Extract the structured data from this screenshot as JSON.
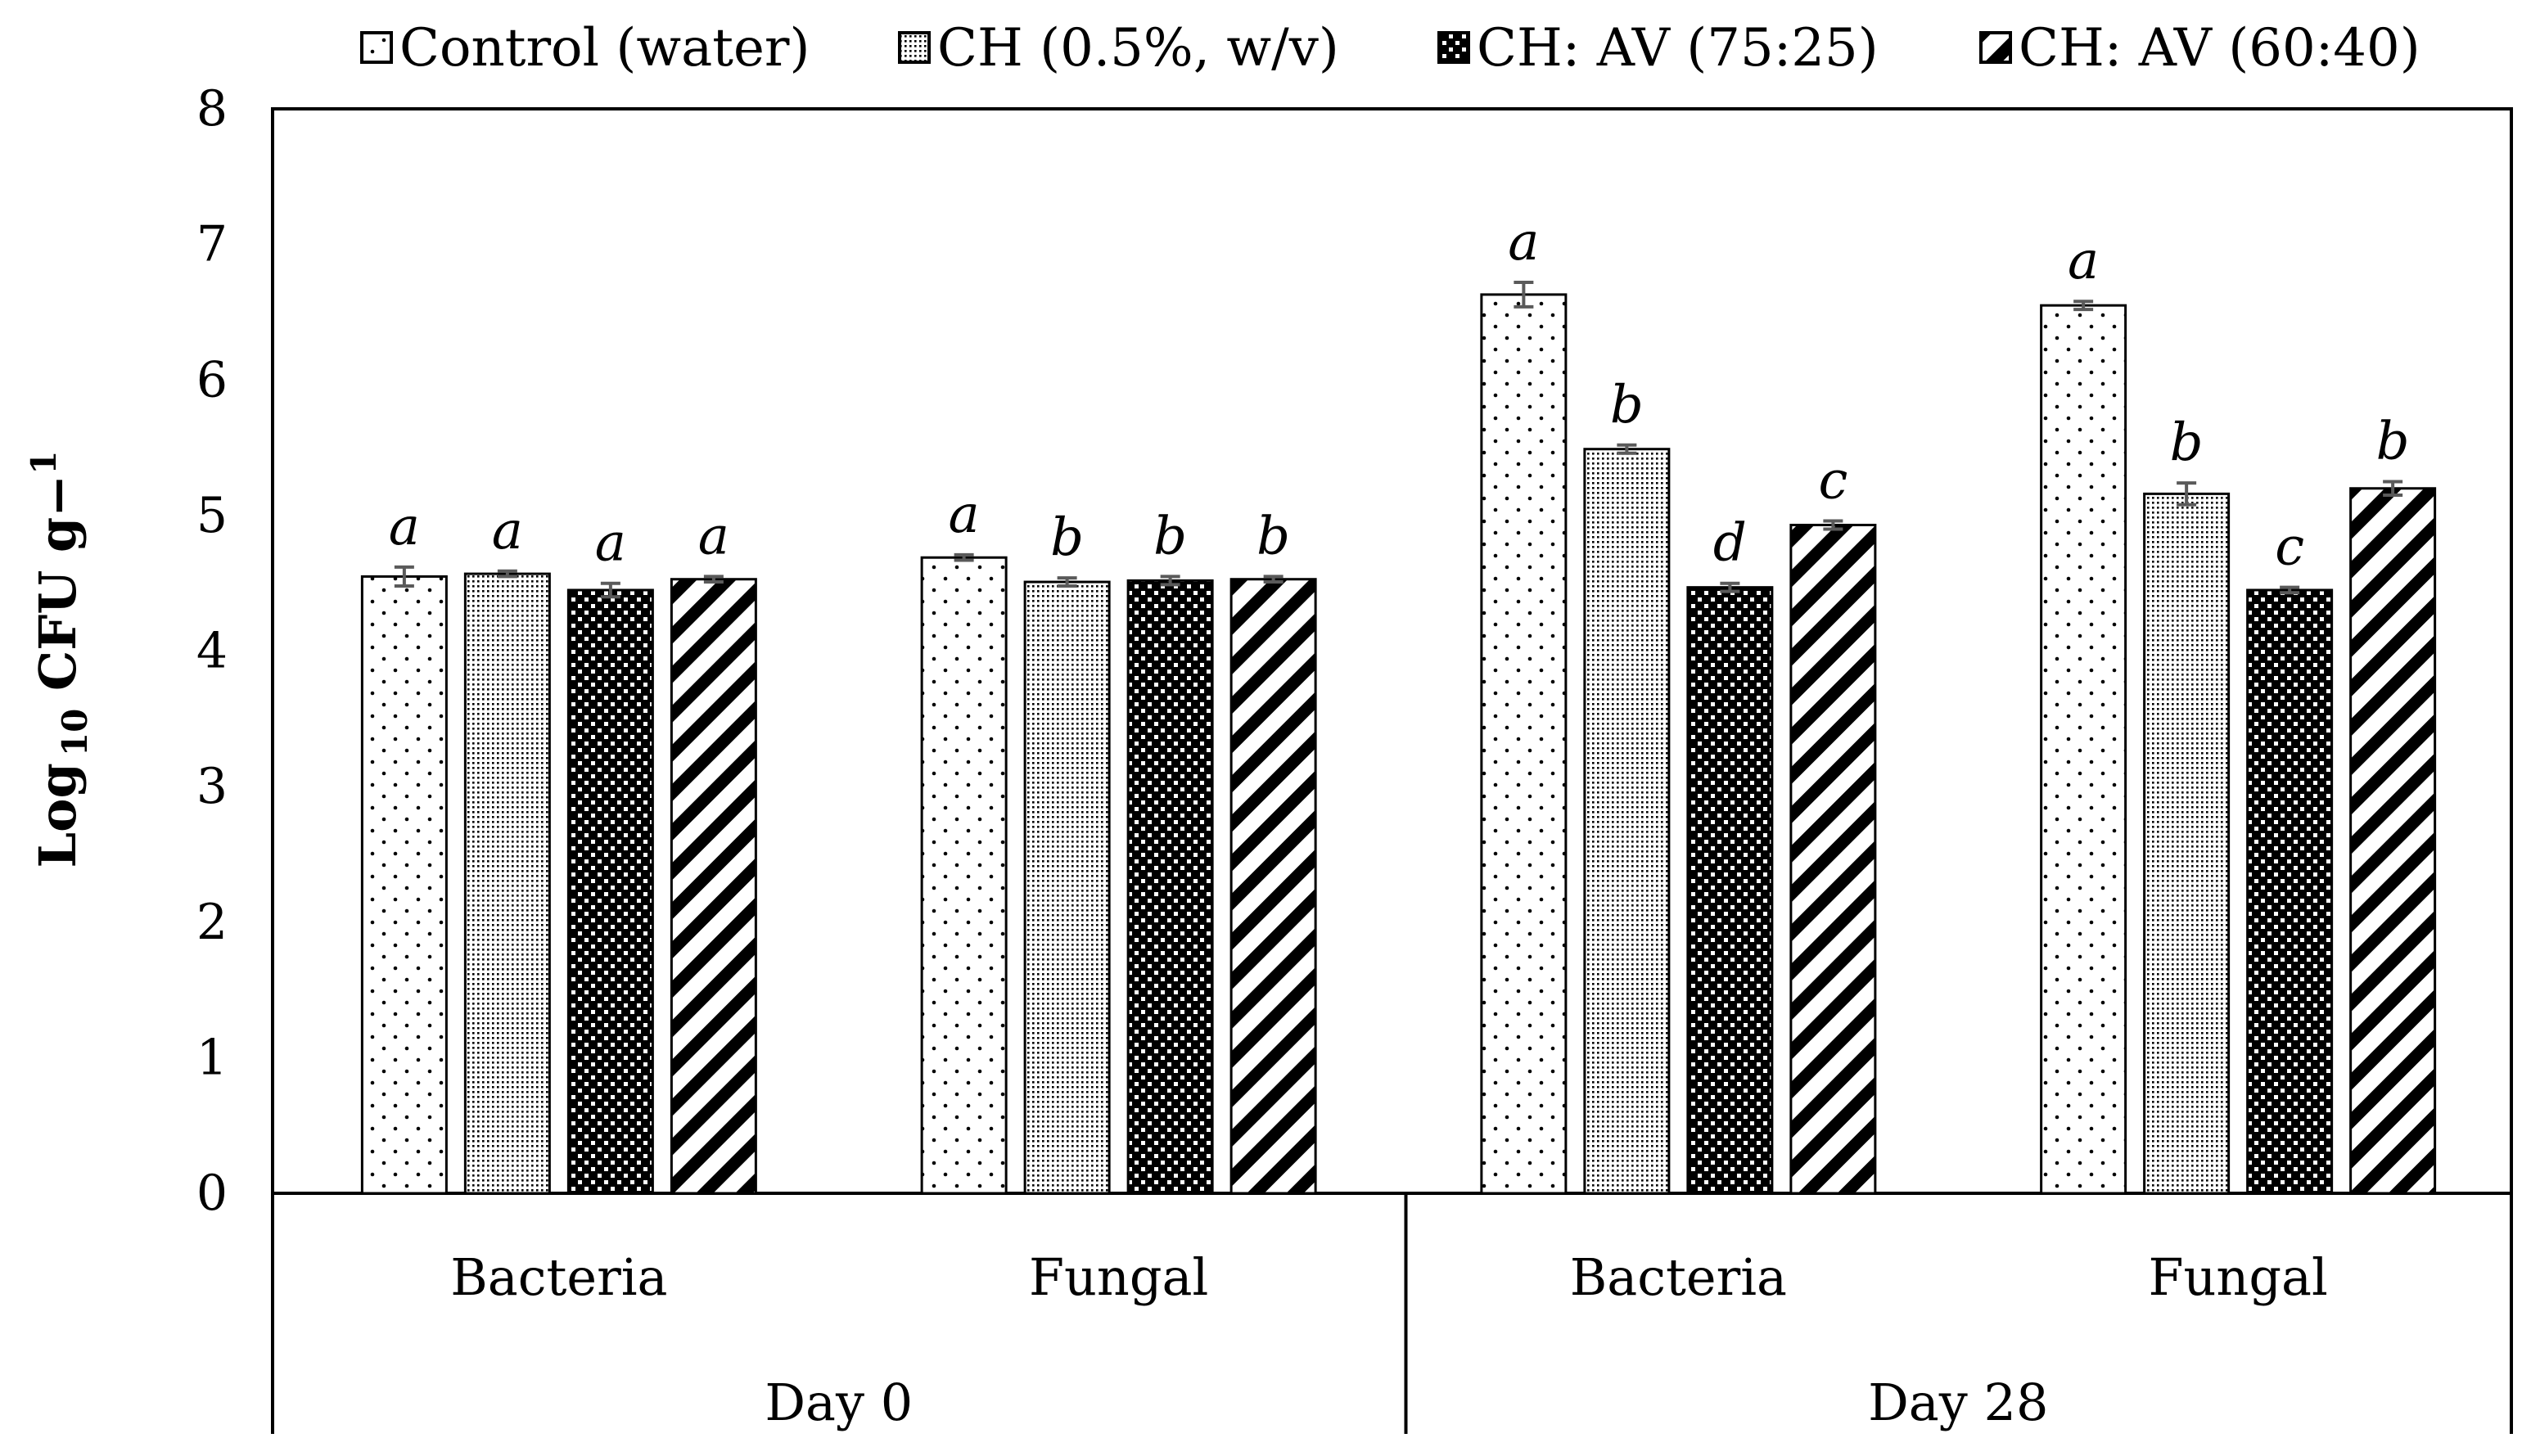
{
  "chart_data": {
    "type": "bar",
    "title": "",
    "ylabel": {
      "base": "Log",
      "subscript": "10",
      "rest": " CFU g−",
      "superscript": "1"
    },
    "ylim": [
      0,
      8
    ],
    "yticks": [
      0,
      1,
      2,
      3,
      4,
      5,
      6,
      7,
      8
    ],
    "grid": false,
    "legend_position": "top",
    "group_labels": [
      "Day 0",
      "Day 28"
    ],
    "categories": [
      "Bacteria",
      "Fungal",
      "Bacteria",
      "Fungal"
    ],
    "category_group": [
      0,
      0,
      1,
      1
    ],
    "series": [
      {
        "name": "Control (water)",
        "pattern": "sparse-dots",
        "values": [
          4.55,
          4.69,
          6.63,
          6.55
        ],
        "errors": [
          0.07,
          0.02,
          0.09,
          0.03
        ],
        "letters": [
          "a",
          "a",
          "a",
          "a"
        ]
      },
      {
        "name": "CH (0.5%, w/v)",
        "pattern": "fine-dots",
        "values": [
          4.57,
          4.51,
          5.49,
          5.16
        ],
        "errors": [
          0.02,
          0.03,
          0.03,
          0.08
        ],
        "letters": [
          "a",
          "b",
          "b",
          "b"
        ]
      },
      {
        "name": "CH: AV (75:25)",
        "pattern": "dense-dots",
        "values": [
          4.45,
          4.52,
          4.47,
          4.45
        ],
        "errors": [
          0.05,
          0.03,
          0.03,
          0.02
        ],
        "letters": [
          "a",
          "b",
          "d",
          "c"
        ]
      },
      {
        "name": "CH: AV (60:40)",
        "pattern": "diagonal-stripes",
        "values": [
          4.53,
          4.53,
          4.93,
          5.2
        ],
        "errors": [
          0.02,
          0.02,
          0.03,
          0.05
        ],
        "letters": [
          "a",
          "b",
          "c",
          "b"
        ]
      }
    ]
  },
  "colors": {
    "bar_stroke": "#000000",
    "error_bar": "#5a5a5a",
    "background": "#ffffff"
  }
}
